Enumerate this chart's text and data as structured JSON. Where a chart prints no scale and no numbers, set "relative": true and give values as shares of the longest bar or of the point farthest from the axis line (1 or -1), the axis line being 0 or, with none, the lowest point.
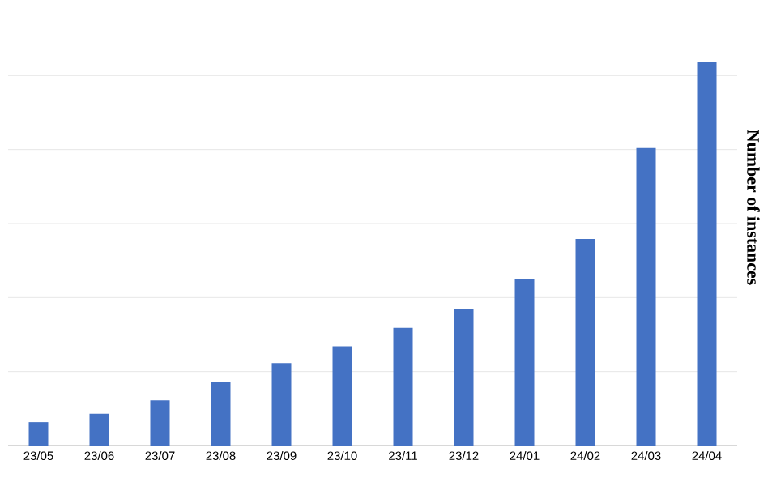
{
  "chart_data": {
    "type": "bar",
    "ylabel": "Number of instances",
    "relative": true,
    "grid": "y",
    "color": "#4472c4",
    "categories": [
      "23/05",
      "23/06",
      "23/07",
      "23/08",
      "23/09",
      "23/10",
      "23/11",
      "23/12",
      "24/01",
      "24/02",
      "24/03",
      "24/04"
    ],
    "values": [
      0.061,
      0.083,
      0.118,
      0.167,
      0.215,
      0.259,
      0.307,
      0.355,
      0.434,
      0.539,
      0.776,
      1
    ]
  }
}
